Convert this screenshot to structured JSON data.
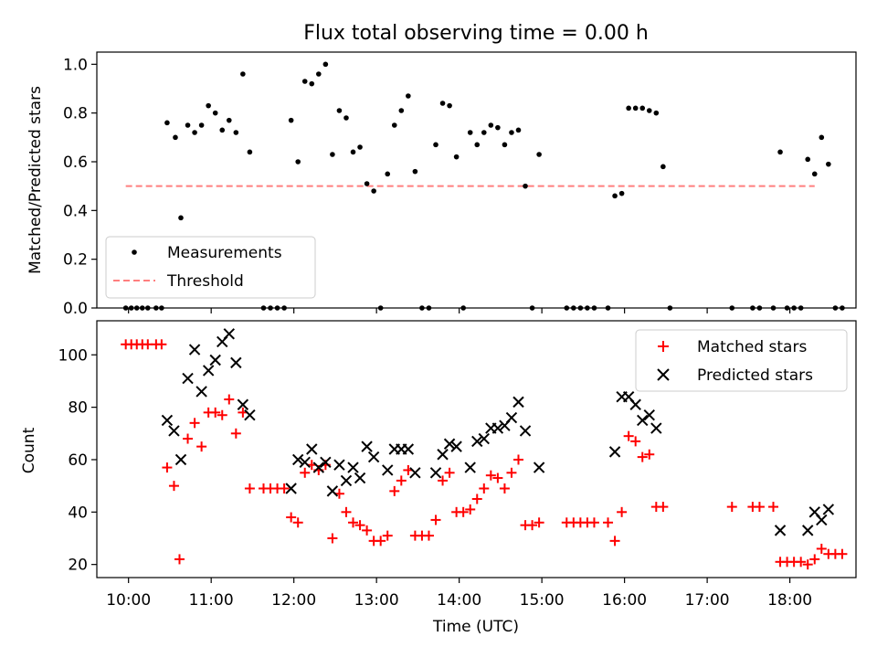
{
  "chart_data": [
    {
      "type": "scatter",
      "title": "Flux total observing time = 0.00 h",
      "ylabel": "Matched/Predicted stars",
      "xlabel": "",
      "xlim": [
        "09:37",
        "18:48"
      ],
      "ylim": [
        0,
        1.05
      ],
      "yticks": [
        "0.0",
        "0.2",
        "0.4",
        "0.6",
        "0.8",
        "1.0"
      ],
      "legend": {
        "placement": "lower-left",
        "entries": [
          "Measurements",
          "Threshold"
        ]
      },
      "threshold": {
        "name": "Threshold",
        "y": 0.5,
        "x_range": [
          "09:58",
          "18:18"
        ],
        "color": "#ff7f7f",
        "style": "dashed"
      },
      "series": [
        {
          "name": "Measurements",
          "marker": "dot",
          "color": "#000000",
          "points": [
            [
              "09:58",
              0
            ],
            [
              "10:02",
              0
            ],
            [
              "10:06",
              0
            ],
            [
              "10:10",
              0
            ],
            [
              "10:14",
              0
            ],
            [
              "10:20",
              0
            ],
            [
              "10:24",
              0
            ],
            [
              "10:28",
              0.76
            ],
            [
              "10:34",
              0.7
            ],
            [
              "10:38",
              0.37
            ],
            [
              "10:43",
              0.75
            ],
            [
              "10:48",
              0.72
            ],
            [
              "10:53",
              0.75
            ],
            [
              "10:58",
              0.83
            ],
            [
              "11:03",
              0.8
            ],
            [
              "11:08",
              0.73
            ],
            [
              "11:13",
              0.77
            ],
            [
              "11:18",
              0.72
            ],
            [
              "11:23",
              0.96
            ],
            [
              "11:28",
              0.64
            ],
            [
              "11:38",
              0
            ],
            [
              "11:43",
              0
            ],
            [
              "11:48",
              0
            ],
            [
              "11:53",
              0
            ],
            [
              "11:58",
              0.77
            ],
            [
              "12:03",
              0.6
            ],
            [
              "12:08",
              0.93
            ],
            [
              "12:13",
              0.92
            ],
            [
              "12:18",
              0.96
            ],
            [
              "12:23",
              1.0
            ],
            [
              "12:28",
              0.63
            ],
            [
              "12:33",
              0.81
            ],
            [
              "12:38",
              0.78
            ],
            [
              "12:43",
              0.64
            ],
            [
              "12:48",
              0.66
            ],
            [
              "12:53",
              0.51
            ],
            [
              "12:58",
              0.48
            ],
            [
              "13:03",
              0
            ],
            [
              "13:08",
              0.55
            ],
            [
              "13:13",
              0.75
            ],
            [
              "13:18",
              0.81
            ],
            [
              "13:23",
              0.87
            ],
            [
              "13:28",
              0.56
            ],
            [
              "13:33",
              0
            ],
            [
              "13:38",
              0
            ],
            [
              "13:43",
              0.67
            ],
            [
              "13:48",
              0.84
            ],
            [
              "13:53",
              0.83
            ],
            [
              "13:58",
              0.62
            ],
            [
              "14:03",
              0
            ],
            [
              "14:08",
              0.72
            ],
            [
              "14:13",
              0.67
            ],
            [
              "14:18",
              0.72
            ],
            [
              "14:23",
              0.75
            ],
            [
              "14:28",
              0.74
            ],
            [
              "14:33",
              0.67
            ],
            [
              "14:38",
              0.72
            ],
            [
              "14:43",
              0.73
            ],
            [
              "14:48",
              0.5
            ],
            [
              "14:53",
              0
            ],
            [
              "14:58",
              0.63
            ],
            [
              "15:18",
              0
            ],
            [
              "15:23",
              0
            ],
            [
              "15:28",
              0
            ],
            [
              "15:33",
              0
            ],
            [
              "15:38",
              0
            ],
            [
              "15:48",
              0
            ],
            [
              "15:53",
              0.46
            ],
            [
              "15:58",
              0.47
            ],
            [
              "16:03",
              0.82
            ],
            [
              "16:08",
              0.82
            ],
            [
              "16:13",
              0.82
            ],
            [
              "16:18",
              0.81
            ],
            [
              "16:23",
              0.8
            ],
            [
              "16:28",
              0.58
            ],
            [
              "16:33",
              0
            ],
            [
              "17:18",
              0
            ],
            [
              "17:33",
              0
            ],
            [
              "17:38",
              0
            ],
            [
              "17:48",
              0
            ],
            [
              "17:53",
              0.64
            ],
            [
              "17:58",
              0
            ],
            [
              "18:03",
              0
            ],
            [
              "18:08",
              0
            ],
            [
              "18:13",
              0.61
            ],
            [
              "18:18",
              0.55
            ],
            [
              "18:23",
              0.7
            ],
            [
              "18:28",
              0.59
            ],
            [
              "18:33",
              0
            ],
            [
              "18:38",
              0
            ]
          ]
        }
      ]
    },
    {
      "type": "scatter",
      "title": "",
      "ylabel": "Count",
      "xlabel": "Time (UTC)",
      "xlim": [
        "09:37",
        "18:48"
      ],
      "ylim": [
        15,
        113
      ],
      "yticks": [
        "20",
        "40",
        "60",
        "80",
        "100"
      ],
      "xticks": [
        "10:00",
        "11:00",
        "12:00",
        "13:00",
        "14:00",
        "15:00",
        "16:00",
        "17:00",
        "18:00"
      ],
      "legend": {
        "placement": "upper-right",
        "entries": [
          "Matched stars",
          "Predicted stars"
        ]
      },
      "series": [
        {
          "name": "Matched stars",
          "marker": "plus",
          "color": "#ff0000",
          "points": [
            [
              "09:58",
              104
            ],
            [
              "10:02",
              104
            ],
            [
              "10:06",
              104
            ],
            [
              "10:10",
              104
            ],
            [
              "10:14",
              104
            ],
            [
              "10:20",
              104
            ],
            [
              "10:24",
              104
            ],
            [
              "10:28",
              57
            ],
            [
              "10:33",
              50
            ],
            [
              "10:37",
              22
            ],
            [
              "10:43",
              68
            ],
            [
              "10:48",
              74
            ],
            [
              "10:53",
              65
            ],
            [
              "10:58",
              78
            ],
            [
              "11:03",
              78
            ],
            [
              "11:08",
              77
            ],
            [
              "11:13",
              83
            ],
            [
              "11:18",
              70
            ],
            [
              "11:23",
              78
            ],
            [
              "11:28",
              49
            ],
            [
              "11:38",
              49
            ],
            [
              "11:43",
              49
            ],
            [
              "11:48",
              49
            ],
            [
              "11:53",
              49
            ],
            [
              "11:58",
              38
            ],
            [
              "12:03",
              36
            ],
            [
              "12:08",
              55
            ],
            [
              "12:13",
              58
            ],
            [
              "12:18",
              56
            ],
            [
              "12:23",
              58
            ],
            [
              "12:28",
              30
            ],
            [
              "12:33",
              47
            ],
            [
              "12:38",
              40
            ],
            [
              "12:43",
              36
            ],
            [
              "12:48",
              35
            ],
            [
              "12:53",
              33
            ],
            [
              "12:58",
              29
            ],
            [
              "13:03",
              29
            ],
            [
              "13:08",
              31
            ],
            [
              "13:13",
              48
            ],
            [
              "13:18",
              52
            ],
            [
              "13:23",
              56
            ],
            [
              "13:28",
              31
            ],
            [
              "13:33",
              31
            ],
            [
              "13:38",
              31
            ],
            [
              "13:43",
              37
            ],
            [
              "13:48",
              52
            ],
            [
              "13:53",
              55
            ],
            [
              "13:58",
              40
            ],
            [
              "14:03",
              40
            ],
            [
              "14:08",
              41
            ],
            [
              "14:13",
              45
            ],
            [
              "14:18",
              49
            ],
            [
              "14:23",
              54
            ],
            [
              "14:28",
              53
            ],
            [
              "14:33",
              49
            ],
            [
              "14:38",
              55
            ],
            [
              "14:43",
              60
            ],
            [
              "14:48",
              35
            ],
            [
              "14:53",
              35
            ],
            [
              "14:58",
              36
            ],
            [
              "15:18",
              36
            ],
            [
              "15:23",
              36
            ],
            [
              "15:28",
              36
            ],
            [
              "15:33",
              36
            ],
            [
              "15:38",
              36
            ],
            [
              "15:48",
              36
            ],
            [
              "15:53",
              29
            ],
            [
              "15:58",
              40
            ],
            [
              "16:03",
              69
            ],
            [
              "16:08",
              67
            ],
            [
              "16:13",
              61
            ],
            [
              "16:18",
              62
            ],
            [
              "16:23",
              42
            ],
            [
              "16:28",
              42
            ],
            [
              "17:18",
              42
            ],
            [
              "17:33",
              42
            ],
            [
              "17:38",
              42
            ],
            [
              "17:48",
              42
            ],
            [
              "17:53",
              21
            ],
            [
              "17:58",
              21
            ],
            [
              "18:03",
              21
            ],
            [
              "18:08",
              21
            ],
            [
              "18:13",
              20
            ],
            [
              "18:18",
              22
            ],
            [
              "18:23",
              26
            ],
            [
              "18:28",
              24
            ],
            [
              "18:33",
              24
            ],
            [
              "18:38",
              24
            ]
          ]
        },
        {
          "name": "Predicted stars",
          "marker": "x",
          "color": "#000000",
          "points": [
            [
              "10:28",
              75
            ],
            [
              "10:33",
              71
            ],
            [
              "10:38",
              60
            ],
            [
              "10:43",
              91
            ],
            [
              "10:48",
              102
            ],
            [
              "10:53",
              86
            ],
            [
              "10:58",
              94
            ],
            [
              "11:03",
              98
            ],
            [
              "11:08",
              105
            ],
            [
              "11:13",
              108
            ],
            [
              "11:18",
              97
            ],
            [
              "11:23",
              81
            ],
            [
              "11:28",
              77
            ],
            [
              "11:58",
              49
            ],
            [
              "12:03",
              60
            ],
            [
              "12:08",
              59
            ],
            [
              "12:13",
              64
            ],
            [
              "12:18",
              57
            ],
            [
              "12:23",
              59
            ],
            [
              "12:28",
              48
            ],
            [
              "12:33",
              58
            ],
            [
              "12:38",
              52
            ],
            [
              "12:43",
              57
            ],
            [
              "12:48",
              53
            ],
            [
              "12:53",
              65
            ],
            [
              "12:58",
              61
            ],
            [
              "13:08",
              56
            ],
            [
              "13:13",
              64
            ],
            [
              "13:18",
              64
            ],
            [
              "13:23",
              64
            ],
            [
              "13:28",
              55
            ],
            [
              "13:43",
              55
            ],
            [
              "13:48",
              62
            ],
            [
              "13:53",
              66
            ],
            [
              "13:58",
              65
            ],
            [
              "14:08",
              57
            ],
            [
              "14:13",
              67
            ],
            [
              "14:18",
              68
            ],
            [
              "14:23",
              72
            ],
            [
              "14:28",
              72
            ],
            [
              "14:33",
              73
            ],
            [
              "14:38",
              76
            ],
            [
              "14:43",
              82
            ],
            [
              "14:48",
              71
            ],
            [
              "14:58",
              57
            ],
            [
              "15:53",
              63
            ],
            [
              "15:58",
              84
            ],
            [
              "16:03",
              84
            ],
            [
              "16:08",
              81
            ],
            [
              "16:13",
              75
            ],
            [
              "16:18",
              77
            ],
            [
              "16:23",
              72
            ],
            [
              "17:53",
              33
            ],
            [
              "18:13",
              33
            ],
            [
              "18:18",
              40
            ],
            [
              "18:23",
              37
            ],
            [
              "18:28",
              41
            ]
          ]
        }
      ]
    }
  ]
}
